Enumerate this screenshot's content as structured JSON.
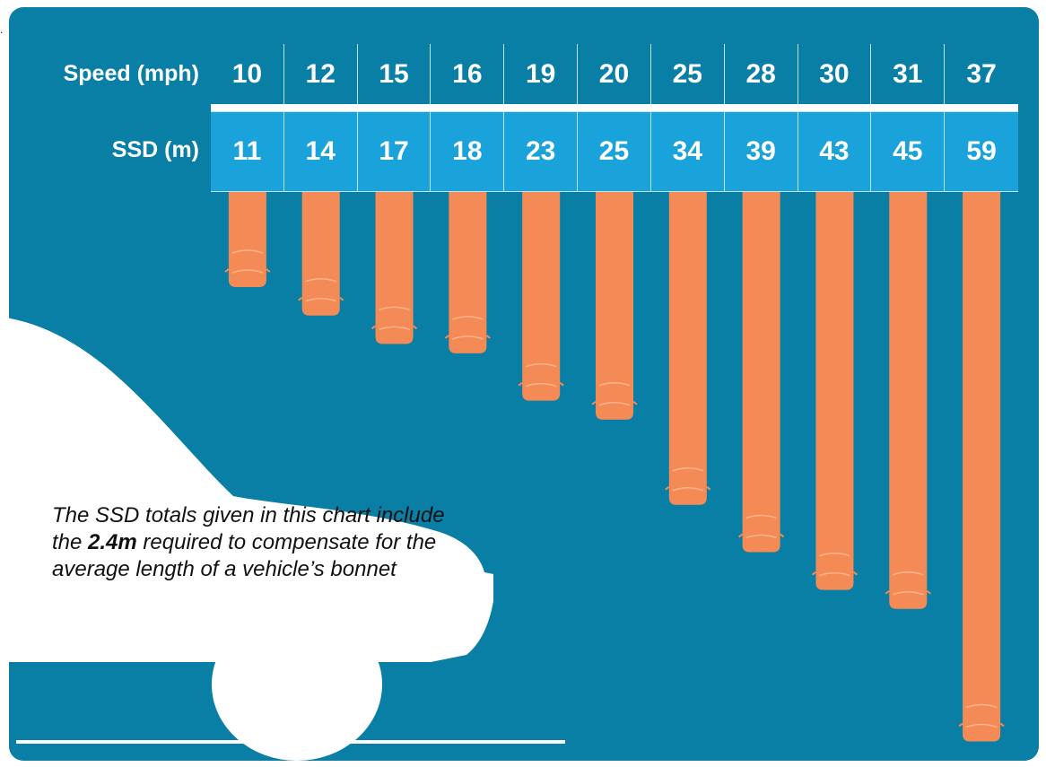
{
  "chart_data": {
    "type": "bar",
    "orientation": "downward",
    "row_labels": {
      "speed": "Speed (mph)",
      "ssd": "SSD (m)"
    },
    "speed_mph": [
      10,
      12,
      15,
      16,
      19,
      20,
      25,
      28,
      30,
      31,
      37
    ],
    "ssd_m": [
      11,
      14,
      17,
      18,
      23,
      25,
      34,
      39,
      43,
      45,
      59
    ],
    "bar_color": "#f48a55",
    "background_color": "#0a7fa6",
    "header_color": "#1aa2db"
  },
  "note": {
    "prefix": "The SSD totals given in this chart include the ",
    "emphasis": "2.4m",
    "suffix": " required to compensate for the average length of a vehicle’s bonnet"
  },
  "dot": "."
}
